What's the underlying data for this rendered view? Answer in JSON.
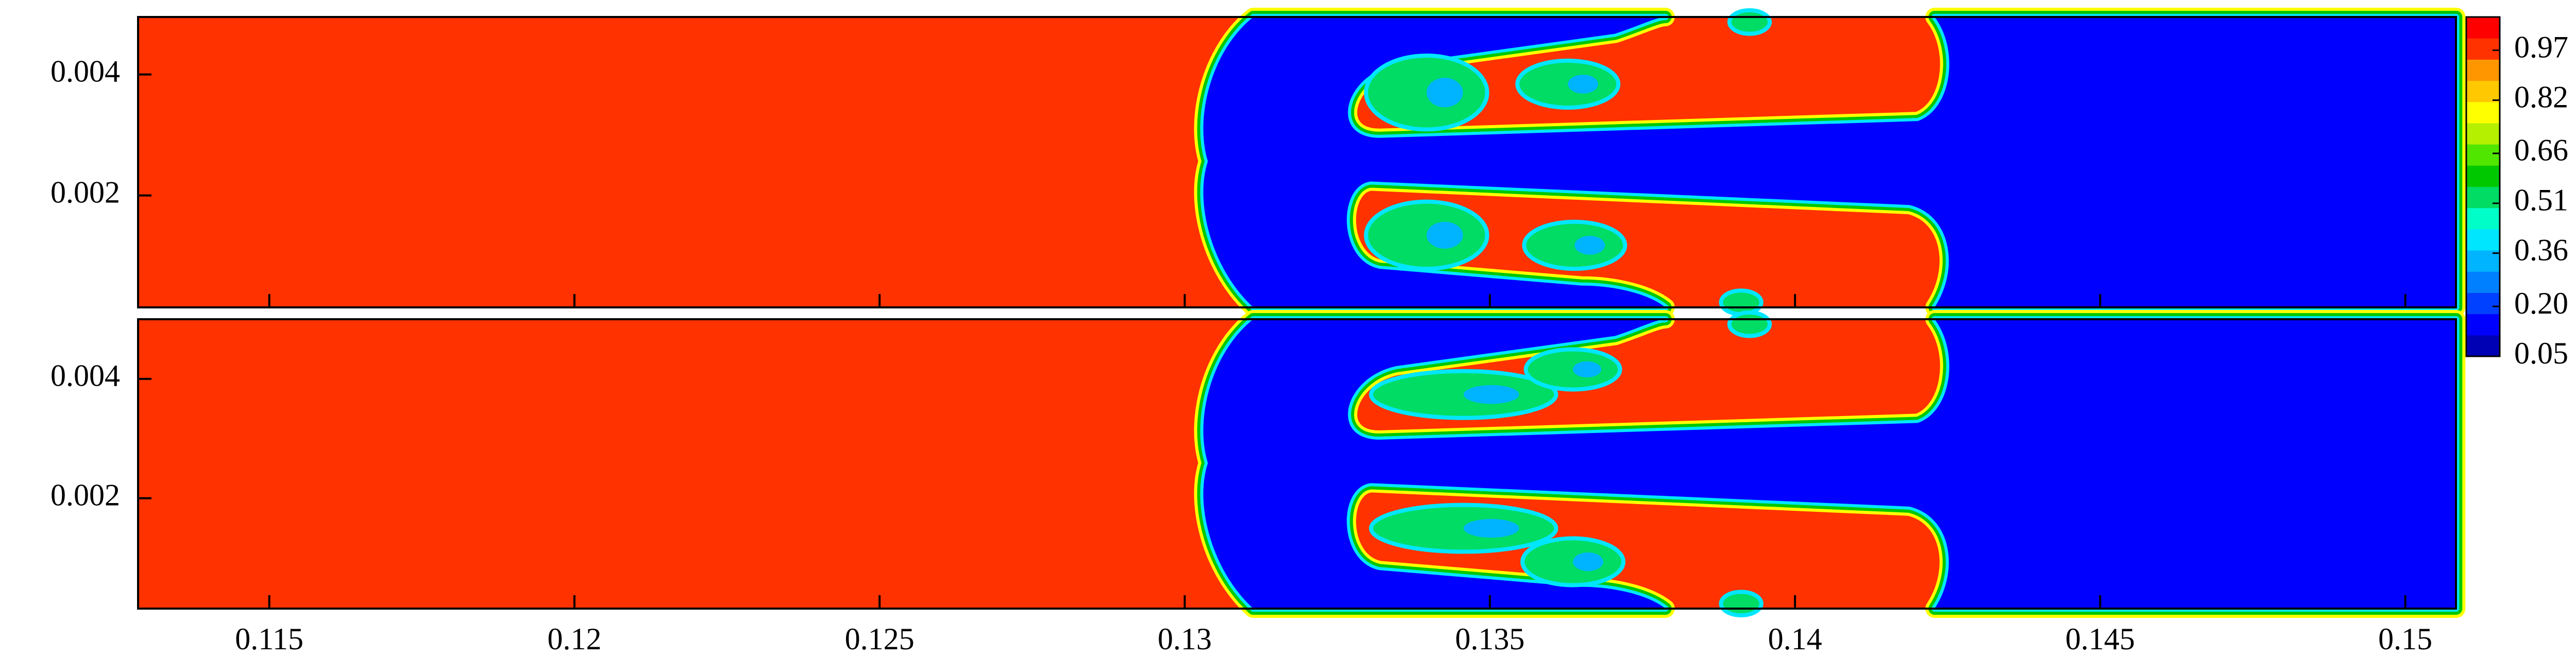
{
  "chart_data": {
    "type": "contour",
    "xlim": [
      0.11285,
      0.15083
    ],
    "xticks": [
      0.115,
      0.12,
      0.125,
      0.13,
      0.135,
      0.14,
      0.145,
      0.15
    ],
    "panels": [
      {
        "ylim": [
          0.00015,
          0.00495
        ],
        "yticks": [
          0.002,
          0.004
        ]
      },
      {
        "ylim": [
          0.00015,
          0.005
        ],
        "yticks": [
          0.002,
          0.004
        ]
      }
    ],
    "colorbar": {
      "lim": [
        0.05,
        1.07
      ],
      "ticks": [
        {
          "value": 0.05,
          "label": "0.05"
        },
        {
          "value": 0.2,
          "label": "0.20"
        },
        0.36,
        0.51,
        0.66,
        0.82,
        0.97
      ],
      "colors": [
        "#0000b4",
        "#0000ff",
        "#0040ff",
        "#0080ff",
        "#00b4ff",
        "#00e6ff",
        "#00ffc8",
        "#00dc64",
        "#00c800",
        "#50e600",
        "#b4f000",
        "#ffff00",
        "#ffc800",
        "#ff9600",
        "#ff3200",
        "#ff0000"
      ]
    }
  }
}
